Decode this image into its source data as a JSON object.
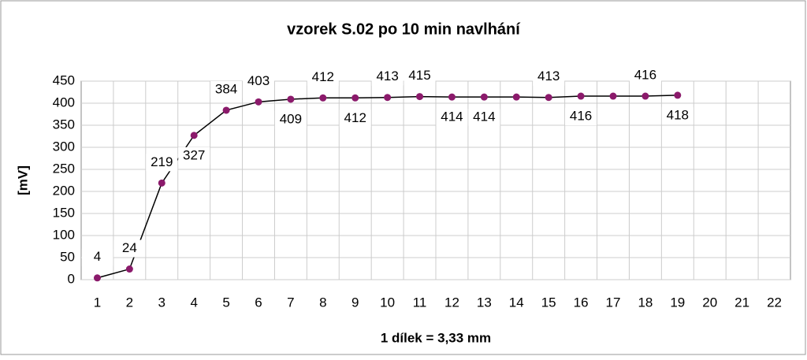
{
  "chart_data": {
    "type": "line",
    "title": "vzorek S.02 po 10 min navlhání",
    "x_label": "1 dílek = 3,33 mm",
    "y_label": "[mV]",
    "categories": [
      "1",
      "2",
      "3",
      "4",
      "5",
      "6",
      "7",
      "8",
      "9",
      "10",
      "11",
      "12",
      "13",
      "14",
      "15",
      "16",
      "17",
      "18",
      "19",
      "20",
      "21",
      "22"
    ],
    "series": [
      {
        "name": "vzorek S.02",
        "color": "#8b1a6b",
        "values": [
          4,
          24,
          219,
          327,
          384,
          403,
          409,
          412,
          412,
          413,
          415,
          414,
          414,
          414,
          413,
          416,
          416,
          416,
          418,
          null,
          null,
          null
        ],
        "value_labels": [
          "4",
          "24",
          "219",
          "327",
          "384",
          "403",
          "409",
          "412",
          "412",
          "413",
          "415",
          "414",
          "414",
          null,
          "413",
          "416",
          null,
          "416",
          "418",
          null,
          null,
          null
        ]
      }
    ],
    "ylim": [
      0,
      450
    ],
    "yticks": [
      0,
      50,
      100,
      150,
      200,
      250,
      300,
      350,
      400,
      450
    ],
    "grid": true
  }
}
